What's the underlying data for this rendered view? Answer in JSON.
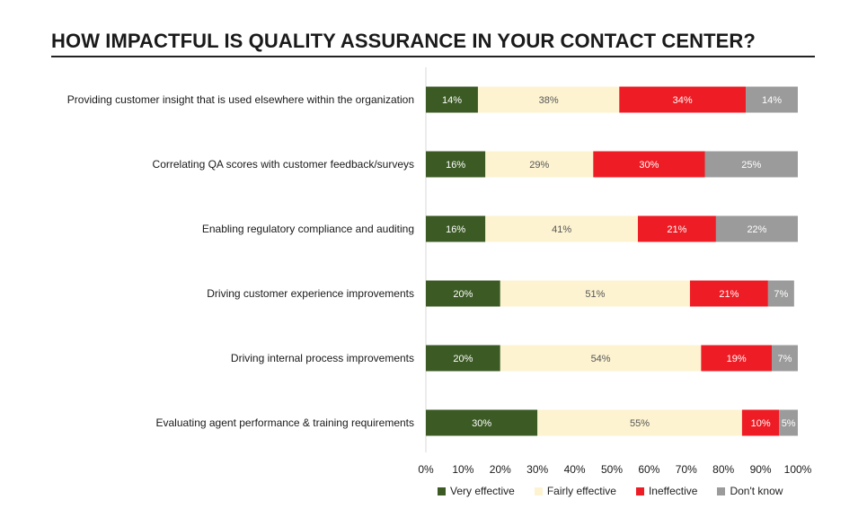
{
  "title": "HOW IMPACTFUL IS QUALITY ASSURANCE IN YOUR CONTACT CENTER?",
  "chart_data": {
    "type": "bar",
    "orientation": "horizontal",
    "stacked": true,
    "title": "HOW IMPACTFUL IS QUALITY ASSURANCE IN YOUR CONTACT CENTER?",
    "categories": [
      "Providing customer insight that is used elsewhere within the organization",
      "Correlating QA scores with customer feedback/surveys",
      "Enabling regulatory compliance and auditing",
      "Driving customer experience improvements",
      "Driving internal process improvements",
      "Evaluating agent performance & training requirements"
    ],
    "series": [
      {
        "name": "Very effective",
        "color": "#3b5a24",
        "label_color": "#ffffff",
        "values": [
          14,
          16,
          16,
          20,
          20,
          30
        ]
      },
      {
        "name": "Fairly effective",
        "color": "#fdf3d1",
        "label_color": "#555555",
        "values": [
          38,
          29,
          41,
          51,
          54,
          55
        ]
      },
      {
        "name": "Ineffective",
        "color": "#ee1c24",
        "label_color": "#ffffff",
        "values": [
          34,
          30,
          21,
          21,
          19,
          10
        ]
      },
      {
        "name": "Don't know",
        "color": "#9b9b9b",
        "label_color": "#ffffff",
        "values": [
          14,
          25,
          22,
          7,
          7,
          5
        ]
      }
    ],
    "xlim": [
      0,
      100
    ],
    "xticks": [
      "0%",
      "10%",
      "20%",
      "30%",
      "40%",
      "50%",
      "60%",
      "70%",
      "80%",
      "90%",
      "100%"
    ],
    "grid": false,
    "legend_position": "bottom"
  }
}
